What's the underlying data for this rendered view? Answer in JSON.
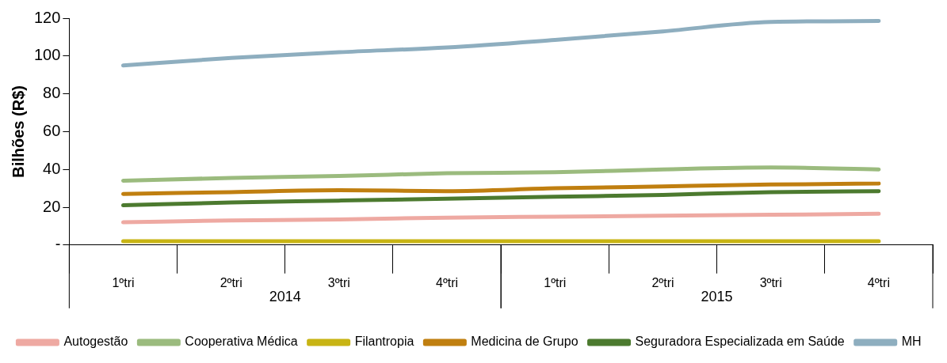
{
  "chart_data": {
    "type": "line",
    "ylabel": "Bilhões (R$)",
    "categories": [
      "1ºtri",
      "2ºtri",
      "3ºtri",
      "4ºtri",
      "1ºtri",
      "2ºtri",
      "3ºtri",
      "4ºtri"
    ],
    "annotations": [
      "2014",
      "2015"
    ],
    "ylim": [
      0,
      120
    ],
    "yticks": [
      {
        "value": 0,
        "label": "-"
      },
      20,
      40,
      60,
      80,
      100,
      120
    ],
    "grid": false,
    "legend": "bottom",
    "marker": "none",
    "line_style": "solid",
    "series": [
      {
        "name": "Autogestão",
        "color": "#eea9a2",
        "values": [
          12,
          13,
          13.5,
          14.5,
          15,
          15.5,
          16,
          16.5
        ]
      },
      {
        "name": "Cooperativa Médica",
        "color": "#9bbb7e",
        "values": [
          34,
          35.5,
          36.5,
          38,
          38.5,
          40,
          41,
          40
        ]
      },
      {
        "name": "Filantropia",
        "color": "#c8b414",
        "values": [
          2,
          2,
          2,
          2,
          2,
          2,
          2,
          2
        ]
      },
      {
        "name": "Medicina de Grupo",
        "color": "#c07f10",
        "values": [
          27,
          28,
          29,
          28.5,
          30,
          31,
          32,
          32.5
        ]
      },
      {
        "name": "Seguradora Especializada em Saúde",
        "color": "#4c7a2f",
        "values": [
          21,
          22.5,
          23.5,
          24.5,
          25.5,
          26.5,
          28,
          28.5
        ]
      },
      {
        "name": "MH",
        "color": "#8eaebf",
        "values": [
          95,
          99,
          102,
          104.5,
          108.5,
          113,
          118,
          118.5
        ]
      }
    ]
  }
}
